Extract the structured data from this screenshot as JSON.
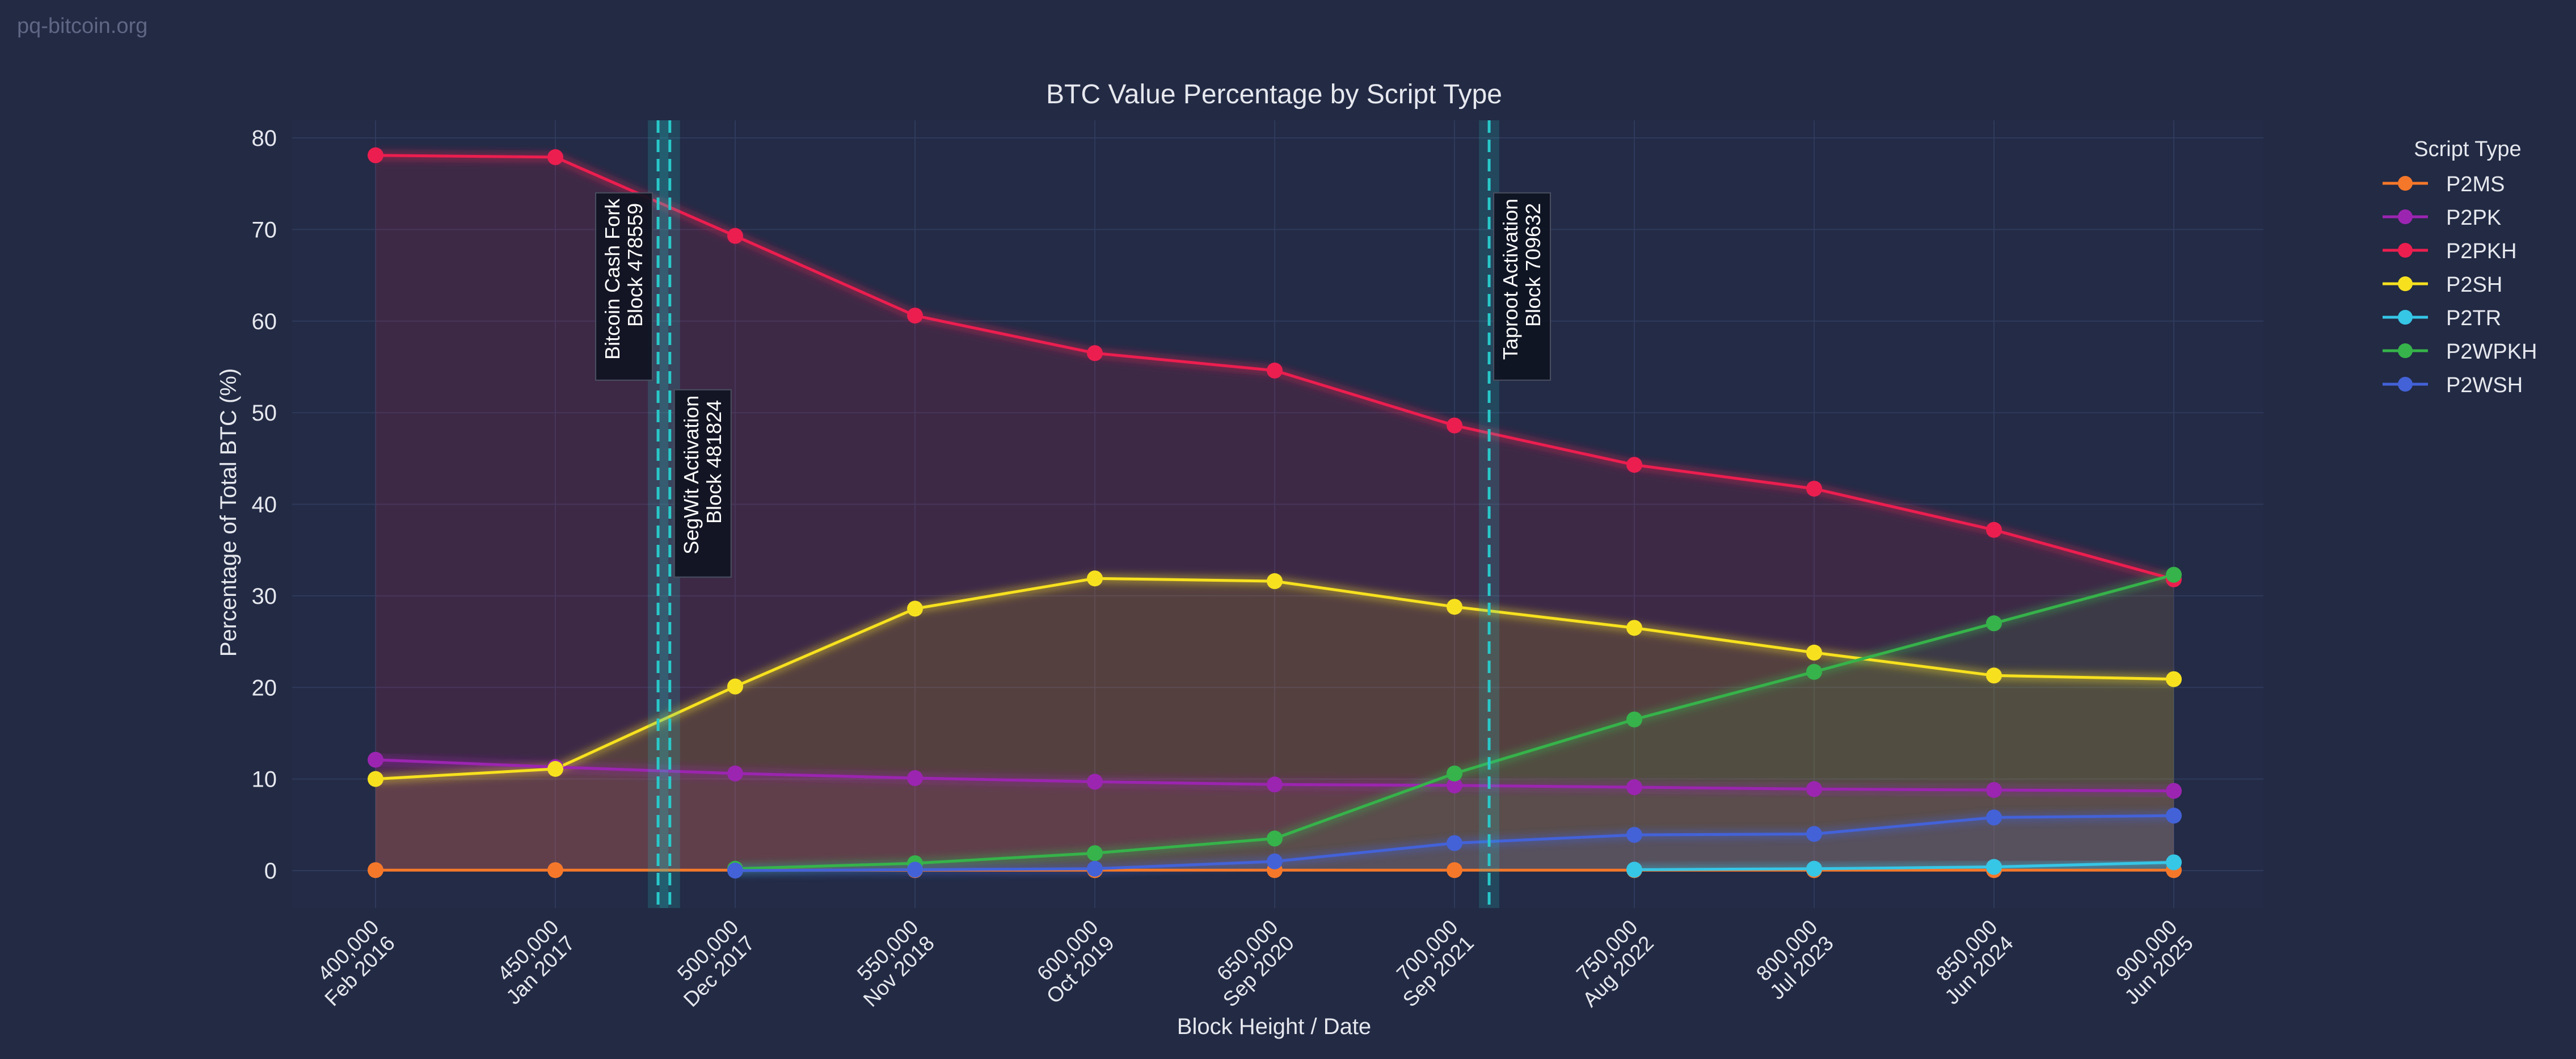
{
  "watermark": "pq-bitcoin.org",
  "chart_data": {
    "type": "line",
    "title": "BTC Value Percentage by Script Type",
    "xlabel": "Block Height / Date",
    "ylabel": "Percentage of Total BTC (%)",
    "xlim": [
      400000,
      900000
    ],
    "ylim": [
      -3,
      82
    ],
    "grid": true,
    "legend_title": "Script Type",
    "legend_position": "right",
    "y_ticks": [
      0,
      10,
      20,
      30,
      40,
      50,
      60,
      70,
      80
    ],
    "x_ticks": [
      {
        "value": 400000,
        "line1": "400,000",
        "line2": "Feb 2016"
      },
      {
        "value": 450000,
        "line1": "450,000",
        "line2": "Jan 2017"
      },
      {
        "value": 500000,
        "line1": "500,000",
        "line2": "Dec 2017"
      },
      {
        "value": 550000,
        "line1": "550,000",
        "line2": "Nov 2018"
      },
      {
        "value": 600000,
        "line1": "600,000",
        "line2": "Oct 2019"
      },
      {
        "value": 650000,
        "line1": "650,000",
        "line2": "Sep 2020"
      },
      {
        "value": 700000,
        "line1": "700,000",
        "line2": "Sep 2021"
      },
      {
        "value": 750000,
        "line1": "750,000",
        "line2": "Aug 2022"
      },
      {
        "value": 800000,
        "line1": "800,000",
        "line2": "Jul 2023"
      },
      {
        "value": 850000,
        "line1": "850,000",
        "line2": "Jun 2024"
      },
      {
        "value": 900000,
        "line1": "900,000",
        "line2": "Jun 2025"
      }
    ],
    "series": [
      {
        "name": "P2MS",
        "color": "#f5782a",
        "x": [
          400000,
          450000,
          500000,
          550000,
          600000,
          650000,
          700000,
          750000,
          800000,
          850000,
          900000
        ],
        "values": [
          0.05,
          0.05,
          0.05,
          0.05,
          0.05,
          0.05,
          0.05,
          0.05,
          0.05,
          0.05,
          0.05
        ]
      },
      {
        "name": "P2PK",
        "color": "#9b25b0",
        "x": [
          400000,
          450000,
          500000,
          550000,
          600000,
          650000,
          700000,
          750000,
          800000,
          850000,
          900000
        ],
        "values": [
          12.1,
          11.3,
          10.6,
          10.1,
          9.7,
          9.4,
          9.3,
          9.1,
          8.9,
          8.8,
          8.7
        ]
      },
      {
        "name": "P2PKH",
        "color": "#ec1e4f",
        "x": [
          400000,
          450000,
          500000,
          550000,
          600000,
          650000,
          700000,
          750000,
          800000,
          850000,
          900000
        ],
        "values": [
          78.1,
          77.9,
          69.3,
          60.6,
          56.5,
          54.6,
          48.6,
          44.3,
          41.7,
          37.2,
          31.8
        ]
      },
      {
        "name": "P2SH",
        "color": "#f7e11f",
        "x": [
          400000,
          450000,
          500000,
          550000,
          600000,
          650000,
          700000,
          750000,
          800000,
          850000,
          900000
        ],
        "values": [
          10.0,
          11.1,
          20.1,
          28.6,
          31.9,
          31.6,
          28.8,
          26.5,
          23.8,
          21.3,
          20.9
        ]
      },
      {
        "name": "P2TR",
        "color": "#36c6e6",
        "x": [
          750000,
          800000,
          850000,
          900000
        ],
        "values": [
          0.1,
          0.2,
          0.4,
          0.9
        ]
      },
      {
        "name": "P2WPKH",
        "color": "#36b34a",
        "x": [
          500000,
          550000,
          600000,
          650000,
          700000,
          750000,
          800000,
          850000,
          900000
        ],
        "values": [
          0.2,
          0.8,
          1.9,
          3.5,
          10.6,
          16.5,
          21.7,
          27.0,
          32.3
        ]
      },
      {
        "name": "P2WSH",
        "color": "#4362d8",
        "x": [
          500000,
          550000,
          600000,
          650000,
          700000,
          750000,
          800000,
          850000,
          900000
        ],
        "values": [
          0.0,
          0.1,
          0.2,
          1.0,
          3.0,
          3.9,
          4.0,
          5.8,
          6.0
        ]
      }
    ],
    "annotations": [
      {
        "x": 478559,
        "line1": "Bitcoin Cash Fork",
        "line2": "Block 478559",
        "label_anchor_y": 74
      },
      {
        "x": 481824,
        "line1": "SegWit Activation",
        "line2": "Block 481824",
        "label_anchor_y": 52.5
      },
      {
        "x": 709632,
        "line1": "Taproot Activation",
        "line2": "Block 709632",
        "label_anchor_y": 74
      }
    ],
    "annotation_color": "#28c9c9"
  }
}
